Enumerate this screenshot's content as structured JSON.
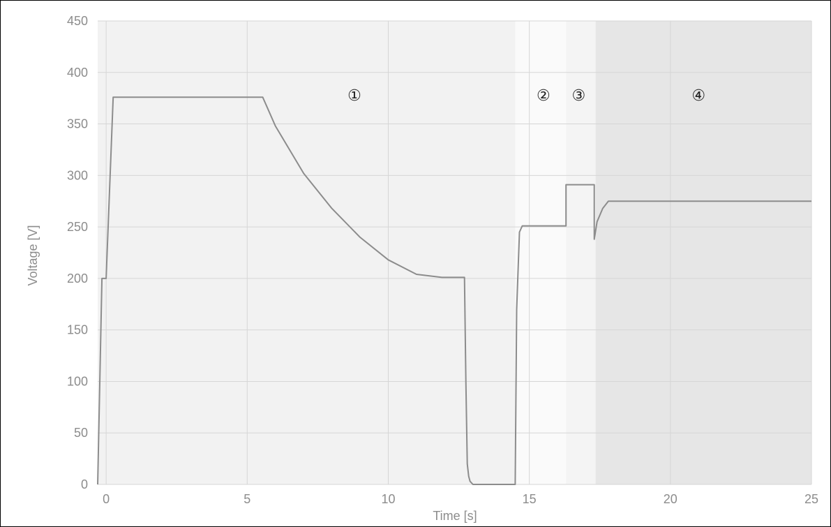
{
  "chart_data": {
    "type": "line",
    "title": "",
    "xlabel": "Time [s]",
    "ylabel": "Voltage [V]",
    "xlim": [
      -0.3,
      25
    ],
    "ylim": [
      0,
      450
    ],
    "xticks": [
      0,
      5,
      10,
      15,
      20,
      25
    ],
    "yticks": [
      0,
      50,
      100,
      150,
      200,
      250,
      300,
      350,
      400,
      450
    ],
    "grid": true,
    "regions": [
      {
        "label": "①",
        "x_start": -0.3,
        "x_end": 14.5,
        "color": "#f2f2f2"
      },
      {
        "label": "②",
        "x_start": 14.5,
        "x_end": 16.3,
        "color": "#fafafa"
      },
      {
        "label": "③",
        "x_start": 16.3,
        "x_end": 17.35,
        "color": "#f4f4f4"
      },
      {
        "label": "④",
        "x_start": 17.35,
        "x_end": 25,
        "color": "#e6e6e6"
      }
    ],
    "region_label_y": 378,
    "region_label_x": [
      8.8,
      15.5,
      16.75,
      21.0
    ],
    "series": [
      {
        "color": "#8c8c8c",
        "x": [
          -0.3,
          -0.15,
          -0.1,
          0.0,
          0.25,
          5.55,
          6.0,
          7.0,
          8.0,
          9.0,
          10.0,
          11.0,
          11.9,
          12.0,
          12.7,
          12.75,
          12.8,
          12.85,
          12.9,
          13.0,
          13.2,
          14.5,
          14.55,
          14.65,
          14.75,
          16.3,
          16.3,
          17.3,
          17.3,
          17.4,
          17.6,
          17.8,
          25.0
        ],
        "y": [
          0,
          200,
          200,
          200,
          376,
          376,
          348,
          302,
          268,
          240,
          218,
          204,
          201,
          201,
          201,
          100,
          20,
          8,
          3,
          0,
          0,
          0,
          170,
          245,
          251,
          251,
          291,
          291,
          238,
          255,
          268,
          275,
          275
        ]
      }
    ]
  }
}
